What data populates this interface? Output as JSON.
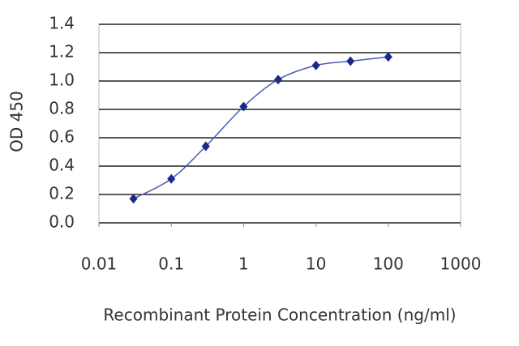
{
  "chart_data": {
    "type": "scatter",
    "y_label": "OD 450",
    "x_label": "Recombinant Protein Concentration (ng/ml)",
    "x_log": true,
    "grid": true,
    "xlim": [
      0.01,
      1000
    ],
    "xticks": [
      0.01,
      0.1,
      1,
      10,
      100,
      1000
    ],
    "ylim": [
      0,
      1.4
    ],
    "yticks": [
      {
        "value": 0,
        "label": "0.0"
      },
      0.2,
      0.4,
      0.6,
      0.8,
      {
        "value": 1,
        "label": "1.0"
      },
      1.2,
      1.4
    ],
    "series": [
      {
        "color": "#1a2a8c",
        "x": [
          0.03,
          0.1,
          0.3,
          1,
          3,
          10,
          30,
          100
        ],
        "values": [
          0.17,
          0.31,
          0.54,
          0.82,
          1.01,
          1.11,
          1.14,
          1.17
        ]
      }
    ]
  }
}
